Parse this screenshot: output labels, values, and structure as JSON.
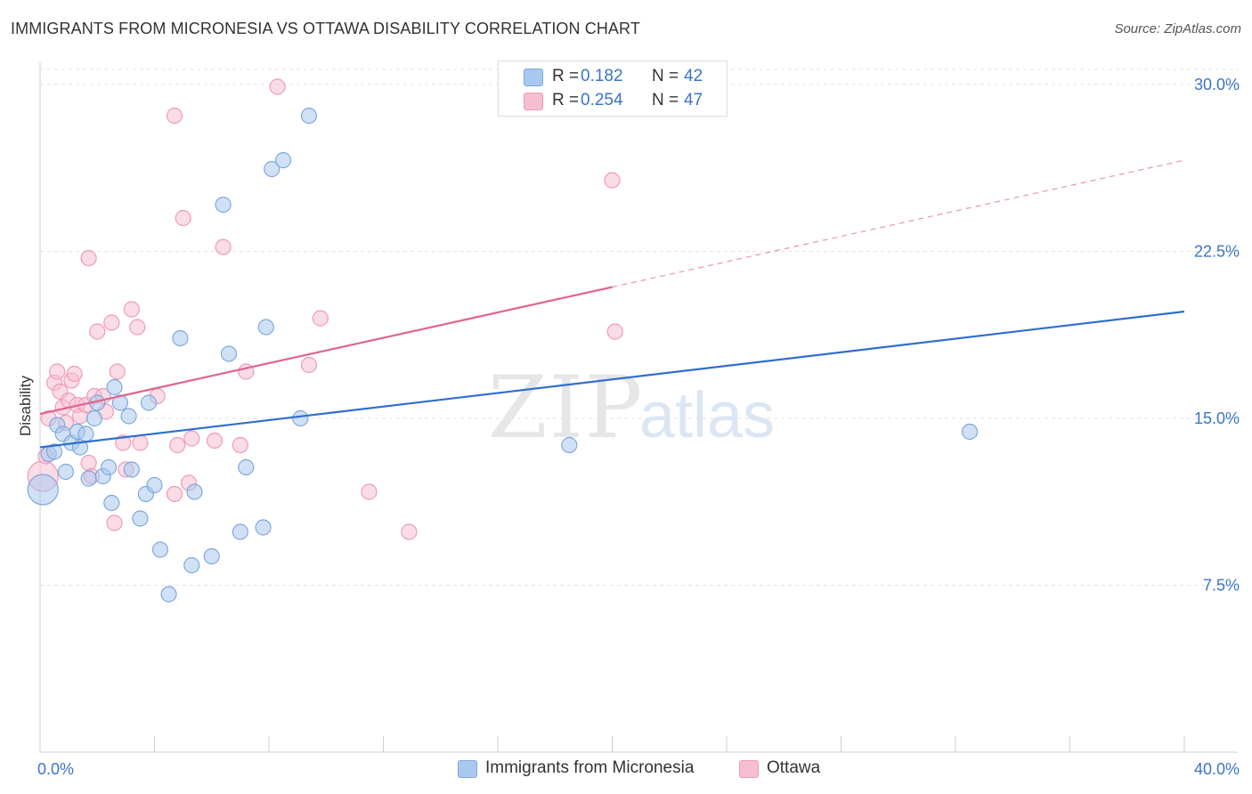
{
  "title": "IMMIGRANTS FROM MICRONESIA VS OTTAWA DISABILITY CORRELATION CHART",
  "source": "Source: ZipAtlas.com",
  "watermark": {
    "zip": "ZIP",
    "atlas": "atlas"
  },
  "legend": {
    "series1": {
      "r_label": "R =",
      "r_value": "0.182",
      "n_label": "N =",
      "n_value": "42"
    },
    "series2": {
      "r_label": "R =",
      "r_value": "0.254",
      "n_label": "N =",
      "n_value": "47"
    }
  },
  "bottom_legend": {
    "series1": "Immigrants from Micronesia",
    "series2": "Ottawa"
  },
  "colors": {
    "blue_fill": "#a9c8ef",
    "blue_stroke": "#7ea8de",
    "blue_line": "#2f6fce",
    "pink_fill": "#f6bfd1",
    "pink_stroke": "#ef9ab7",
    "pink_line": "#e06591",
    "tick_label": "#3b74c7",
    "grid": "#e2e2e2"
  },
  "chart_data": {
    "type": "scatter",
    "title": "IMMIGRANTS FROM MICRONESIA VS OTTAWA DISABILITY CORRELATION CHART",
    "xlabel": "",
    "ylabel": "Disability",
    "xlim": [
      0,
      40
    ],
    "ylim": [
      0,
      31
    ],
    "x_tick_labels": [
      {
        "value": 0,
        "label": "0.0%"
      },
      {
        "value": 40,
        "label": "40.0%"
      }
    ],
    "y_tick_labels": [
      {
        "value": 7.5,
        "label": "7.5%"
      },
      {
        "value": 15,
        "label": "15.0%"
      },
      {
        "value": 22.5,
        "label": "22.5%"
      },
      {
        "value": 30,
        "label": "30.0%"
      }
    ],
    "series": [
      {
        "name": "Immigrants from Micronesia",
        "color": "blue",
        "R": 0.182,
        "N": 42,
        "trend": {
          "x0": 0,
          "y0": 13.7,
          "x1": 40,
          "y1": 19.8
        },
        "points": [
          {
            "x": 0.1,
            "y": 11.8,
            "size": "large"
          },
          {
            "x": 0.3,
            "y": 13.4
          },
          {
            "x": 0.5,
            "y": 13.5
          },
          {
            "x": 0.6,
            "y": 14.7
          },
          {
            "x": 0.8,
            "y": 14.3
          },
          {
            "x": 0.9,
            "y": 12.6
          },
          {
            "x": 1.1,
            "y": 13.9
          },
          {
            "x": 1.3,
            "y": 14.4
          },
          {
            "x": 1.4,
            "y": 13.7
          },
          {
            "x": 1.6,
            "y": 14.3
          },
          {
            "x": 1.7,
            "y": 12.3
          },
          {
            "x": 1.9,
            "y": 15.0
          },
          {
            "x": 2.0,
            "y": 15.7
          },
          {
            "x": 2.2,
            "y": 12.4
          },
          {
            "x": 2.4,
            "y": 12.8
          },
          {
            "x": 2.5,
            "y": 11.2
          },
          {
            "x": 2.6,
            "y": 16.4
          },
          {
            "x": 2.8,
            "y": 15.7
          },
          {
            "x": 3.1,
            "y": 15.1
          },
          {
            "x": 3.2,
            "y": 12.7
          },
          {
            "x": 3.5,
            "y": 10.5
          },
          {
            "x": 3.7,
            "y": 11.6
          },
          {
            "x": 3.8,
            "y": 15.7
          },
          {
            "x": 4.0,
            "y": 12.0
          },
          {
            "x": 4.2,
            "y": 9.1
          },
          {
            "x": 4.5,
            "y": 7.1
          },
          {
            "x": 4.9,
            "y": 18.6
          },
          {
            "x": 5.3,
            "y": 8.4
          },
          {
            "x": 5.4,
            "y": 11.7
          },
          {
            "x": 6.0,
            "y": 8.8
          },
          {
            "x": 6.4,
            "y": 24.6
          },
          {
            "x": 6.6,
            "y": 17.9
          },
          {
            "x": 7.0,
            "y": 9.9
          },
          {
            "x": 7.2,
            "y": 12.8
          },
          {
            "x": 7.8,
            "y": 10.1
          },
          {
            "x": 7.9,
            "y": 19.1
          },
          {
            "x": 8.1,
            "y": 26.2
          },
          {
            "x": 8.5,
            "y": 26.6
          },
          {
            "x": 9.1,
            "y": 15.0
          },
          {
            "x": 9.4,
            "y": 28.6
          },
          {
            "x": 18.5,
            "y": 13.8
          },
          {
            "x": 32.5,
            "y": 14.4
          }
        ]
      },
      {
        "name": "Ottawa",
        "color": "pink",
        "R": 0.254,
        "N": 47,
        "trend": {
          "x0": 0,
          "y0": 15.2,
          "x1": 20,
          "y1": 20.9
        },
        "trend_extension": {
          "x0": 20,
          "y0": 20.9,
          "x1": 40,
          "y1": 26.6
        },
        "points": [
          {
            "x": 0.1,
            "y": 12.4,
            "size": "large"
          },
          {
            "x": 0.2,
            "y": 13.3
          },
          {
            "x": 0.3,
            "y": 15.0
          },
          {
            "x": 0.5,
            "y": 16.6
          },
          {
            "x": 0.6,
            "y": 17.1
          },
          {
            "x": 0.7,
            "y": 16.2
          },
          {
            "x": 0.8,
            "y": 15.5
          },
          {
            "x": 0.9,
            "y": 14.8
          },
          {
            "x": 1.0,
            "y": 15.8
          },
          {
            "x": 1.1,
            "y": 16.7
          },
          {
            "x": 1.2,
            "y": 17.0
          },
          {
            "x": 1.3,
            "y": 15.6
          },
          {
            "x": 1.4,
            "y": 15.1
          },
          {
            "x": 1.6,
            "y": 15.6
          },
          {
            "x": 1.7,
            "y": 13.0
          },
          {
            "x": 1.7,
            "y": 22.2
          },
          {
            "x": 1.8,
            "y": 12.4
          },
          {
            "x": 1.9,
            "y": 16.0
          },
          {
            "x": 2.0,
            "y": 18.9
          },
          {
            "x": 2.2,
            "y": 16.0
          },
          {
            "x": 2.3,
            "y": 15.3
          },
          {
            "x": 2.5,
            "y": 19.3
          },
          {
            "x": 2.6,
            "y": 10.3
          },
          {
            "x": 2.7,
            "y": 17.1
          },
          {
            "x": 2.9,
            "y": 13.9
          },
          {
            "x": 3.0,
            "y": 12.7
          },
          {
            "x": 3.2,
            "y": 19.9
          },
          {
            "x": 3.4,
            "y": 19.1
          },
          {
            "x": 3.5,
            "y": 13.9
          },
          {
            "x": 4.1,
            "y": 16.0
          },
          {
            "x": 4.7,
            "y": 11.6
          },
          {
            "x": 4.7,
            "y": 28.6
          },
          {
            "x": 4.8,
            "y": 13.8
          },
          {
            "x": 5.0,
            "y": 24.0
          },
          {
            "x": 5.2,
            "y": 12.1
          },
          {
            "x": 5.3,
            "y": 14.1
          },
          {
            "x": 6.1,
            "y": 14.0
          },
          {
            "x": 6.4,
            "y": 22.7
          },
          {
            "x": 7.0,
            "y": 13.8
          },
          {
            "x": 7.2,
            "y": 17.1
          },
          {
            "x": 8.3,
            "y": 29.9
          },
          {
            "x": 9.4,
            "y": 17.4
          },
          {
            "x": 9.8,
            "y": 19.5
          },
          {
            "x": 11.5,
            "y": 11.7
          },
          {
            "x": 12.9,
            "y": 9.9
          },
          {
            "x": 20.0,
            "y": 25.7
          },
          {
            "x": 20.1,
            "y": 18.9
          }
        ]
      }
    ]
  }
}
